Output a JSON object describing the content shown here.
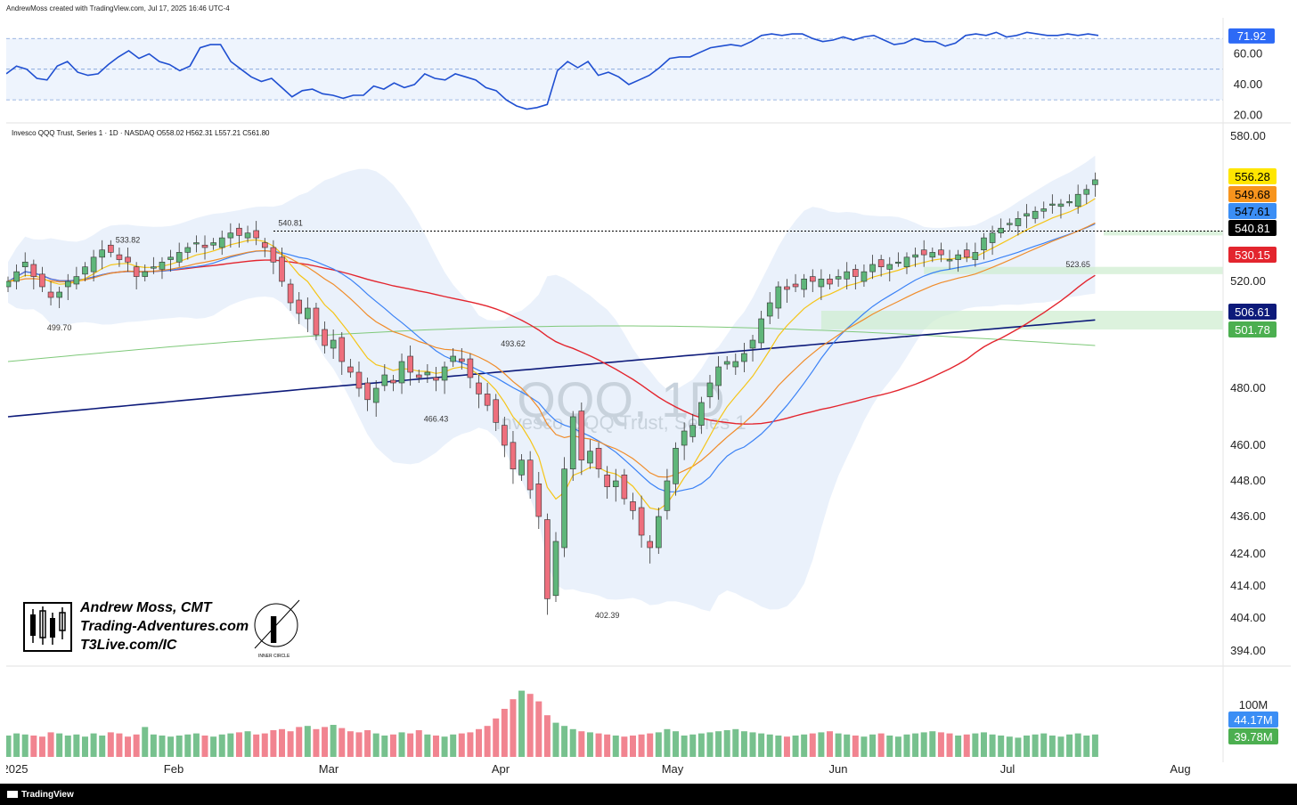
{
  "header": {
    "created_text": "AndrewMoss created with TradingView.com, Jul 17, 2025 16:46 UTC-4"
  },
  "footer": {
    "tradingview_label": "TradingView"
  },
  "legend": {
    "symbol_line": "Invesco QQQ Trust, Series 1 · 1D · NASDAQ  O558.02  H562.31  L557.21  C561.80"
  },
  "watermark": {
    "ticker": "QQQ, 1D",
    "name": "Invesco QQQ Trust, Series 1"
  },
  "branding": {
    "name": "Andrew Moss, CMT",
    "site": "Trading-Adventures.com",
    "link": "T3Live.com/IC",
    "badge_caption": "INNER CIRCLE"
  },
  "colors": {
    "up": "#5fb67a",
    "down": "#ee6f7d",
    "ema8": "#f5c518",
    "ema21": "#f08c2a",
    "sma20": "#3b82f6",
    "sma50": "#e3252e",
    "sma200": "#0d1a7a",
    "sma100": "#7fc97a",
    "rsi": "#1f4fd1",
    "bband_fill": "#e8f0fb"
  },
  "chart_data": [
    {
      "type": "line",
      "title": "RSI",
      "ylim": [
        15,
        80
      ],
      "y_ticks": [
        "60.00",
        "40.00",
        "20.00"
      ],
      "levels": [
        70,
        50,
        30
      ],
      "current_value_label": "71.92",
      "series": [
        {
          "values": [
            47,
            52,
            50,
            44,
            43,
            52,
            55,
            48,
            46,
            47,
            53,
            58,
            62,
            57,
            60,
            55,
            53,
            49,
            52,
            64,
            66,
            66,
            55,
            50,
            45,
            42,
            44,
            38,
            32,
            36,
            37,
            34,
            33,
            31,
            33,
            33,
            39,
            37,
            41,
            38,
            40,
            47,
            44,
            43,
            47,
            45,
            43,
            38,
            36,
            30,
            26,
            24,
            25,
            27,
            49,
            55,
            51,
            55,
            46,
            48,
            45,
            40,
            43,
            46,
            51,
            57,
            58,
            58,
            61,
            64,
            65,
            66,
            65,
            68,
            72,
            73,
            72,
            73,
            73,
            70,
            68,
            69,
            71,
            69,
            71,
            72,
            69,
            66,
            67,
            70,
            68,
            68,
            65,
            67,
            72,
            73,
            72,
            74,
            71,
            72,
            74,
            73,
            72,
            72,
            73,
            72,
            73,
            72
          ]
        }
      ]
    },
    {
      "type": "candlestick",
      "x_ticks": [
        "2025",
        "Feb",
        "Mar",
        "Apr",
        "May",
        "Jun",
        "Jul",
        "Aug"
      ],
      "y_ticks": [
        "580.00",
        "520.00",
        "480.00",
        "460.00",
        "448.00",
        "436.00",
        "424.00",
        "414.00",
        "404.00",
        "394.00"
      ],
      "ylim": [
        390,
        582
      ],
      "annotations": [
        {
          "text": "533.82",
          "x": 14,
          "y": 533.82
        },
        {
          "text": "499.70",
          "x": 6,
          "y": 499.7
        },
        {
          "text": "540.81",
          "x": 33,
          "y": 540.81
        },
        {
          "text": "493.62",
          "x": 59,
          "y": 493.62
        },
        {
          "text": "466.43",
          "x": 50,
          "y": 466.43
        },
        {
          "text": "402.39",
          "x": 70,
          "y": 402.39
        },
        {
          "text": "523.65",
          "x": 125,
          "y": 523.65
        }
      ],
      "reference_line": 540.81,
      "zones": [
        {
          "y0": 523,
          "y1": 526,
          "x0": 107,
          "color": "#cdeccf"
        },
        {
          "y0": 502,
          "y1": 509,
          "x0": 95,
          "color": "#cdeccf"
        },
        {
          "y0": 539,
          "y1": 541,
          "x0": 128,
          "color": "#cdeccf"
        }
      ],
      "price_labels": [
        {
          "text": "556.28",
          "bg": "#ffe600",
          "fg": "#000"
        },
        {
          "text": "549.68",
          "bg": "#f7941d",
          "fg": "#000"
        },
        {
          "text": "547.61",
          "bg": "#3b8ef5",
          "fg": "#000"
        },
        {
          "text": "540.81",
          "bg": "#000000",
          "fg": "#fff"
        },
        {
          "text": "530.15",
          "bg": "#e3252e",
          "fg": "#fff"
        },
        {
          "text": "506.61",
          "bg": "#0d1a7a",
          "fg": "#fff"
        },
        {
          "text": "501.78",
          "bg": "#4caf50",
          "fg": "#fff"
        }
      ],
      "closes": [
        520,
        524,
        528,
        522,
        518,
        514,
        516,
        520,
        522,
        526,
        530,
        533,
        532,
        529,
        528,
        522,
        524,
        526,
        528,
        530,
        532,
        534,
        536,
        534,
        536,
        538,
        540,
        539,
        540,
        538,
        534,
        528,
        520,
        512,
        508,
        510,
        500,
        496,
        498,
        490,
        486,
        480,
        476,
        480,
        485,
        482,
        490,
        486,
        484,
        486,
        483,
        488,
        492,
        490,
        484,
        478,
        474,
        468,
        460,
        452,
        455,
        445,
        436,
        410,
        428,
        452,
        470,
        455,
        458,
        452,
        446,
        448,
        442,
        438,
        430,
        426,
        436,
        448,
        459,
        465,
        467,
        475,
        482,
        488,
        490,
        490,
        493,
        498,
        506,
        512,
        518,
        517,
        518,
        521,
        520,
        521,
        519,
        522,
        524,
        522,
        524,
        527,
        526,
        527,
        528,
        530,
        531,
        531,
        532,
        531,
        529,
        531,
        530,
        532,
        538,
        540,
        542,
        544,
        546,
        548,
        549,
        550,
        552,
        552,
        553,
        556,
        558,
        562
      ]
    },
    {
      "type": "bar",
      "title": "Volume",
      "y_ticks": [
        "100M"
      ],
      "value_labels": [
        {
          "text": "44.17M",
          "bg": "#3b8ef5"
        },
        {
          "text": "39.78M",
          "bg": "#4caf50"
        }
      ],
      "values": [
        40,
        44,
        42,
        40,
        38,
        46,
        44,
        40,
        42,
        38,
        44,
        40,
        46,
        44,
        38,
        42,
        56,
        42,
        40,
        38,
        40,
        42,
        44,
        40,
        38,
        42,
        44,
        46,
        48,
        42,
        44,
        50,
        52,
        48,
        56,
        58,
        52,
        56,
        60,
        54,
        48,
        46,
        50,
        44,
        40,
        42,
        46,
        44,
        50,
        42,
        40,
        38,
        42,
        44,
        46,
        52,
        58,
        72,
        90,
        108,
        124,
        118,
        104,
        78,
        64,
        58,
        52,
        48,
        46,
        44,
        42,
        40,
        38,
        40,
        42,
        44,
        46,
        52,
        48,
        40,
        42,
        44,
        46,
        48,
        50,
        52,
        48,
        46,
        44,
        42,
        40,
        38,
        40,
        42,
        44,
        46,
        48,
        44,
        42,
        40,
        38,
        42,
        44,
        40,
        38,
        42,
        44,
        46,
        48,
        46,
        44,
        40,
        42,
        44,
        46,
        42,
        40,
        38,
        36,
        40,
        42,
        44,
        40,
        38,
        42,
        44,
        40,
        42
      ]
    }
  ]
}
